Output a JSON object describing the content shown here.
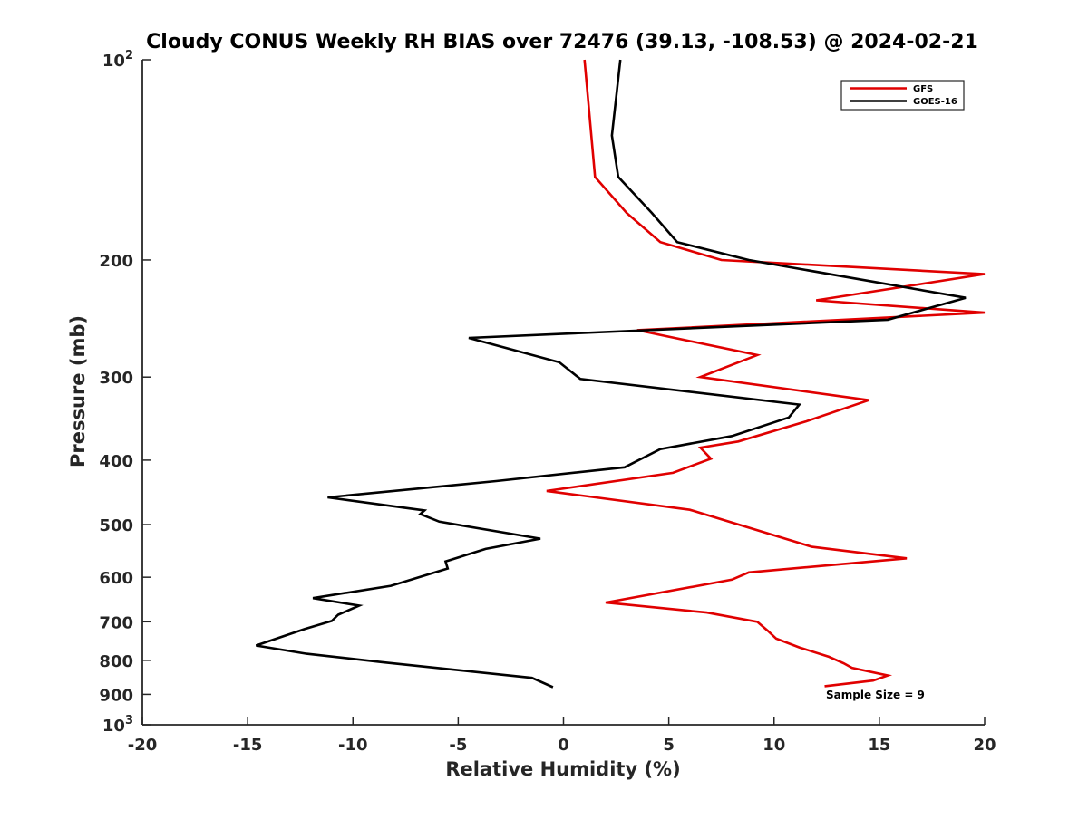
{
  "chart_data": {
    "type": "line",
    "title": "Cloudy CONUS Weekly RH BIAS over 72476 (39.13, -108.53) @ 2024-02-21",
    "xlabel": "Relative Humidity (%)",
    "ylabel": "Pressure (mb)",
    "xlim": [
      -20,
      20
    ],
    "ylim": [
      1000,
      100
    ],
    "y_scale": "log",
    "x_ticks": [
      -20,
      -15,
      -10,
      -5,
      0,
      5,
      10,
      15,
      20
    ],
    "x_tick_labels": [
      "-20",
      "-15",
      "-10",
      "-5",
      "0",
      "5",
      "10",
      "15",
      "20"
    ],
    "y_ticks": [
      {
        "value": 100,
        "label": "10",
        "sup": "2"
      },
      {
        "value": 200,
        "label": "200"
      },
      {
        "value": 300,
        "label": "300"
      },
      {
        "value": 400,
        "label": "400"
      },
      {
        "value": 500,
        "label": "500"
      },
      {
        "value": 600,
        "label": "600"
      },
      {
        "value": 700,
        "label": "700"
      },
      {
        "value": 800,
        "label": "800"
      },
      {
        "value": 900,
        "label": "900"
      },
      {
        "value": 1000,
        "label": "10",
        "sup": "3"
      }
    ],
    "grid": false,
    "legend_position": "top-right",
    "annotation": "Sample Size = 9",
    "series": [
      {
        "name": "GFS",
        "color": "#e00000",
        "points": [
          [
            1.0,
            100
          ],
          [
            1.5,
            150
          ],
          [
            3.0,
            170
          ],
          [
            4.6,
            188
          ],
          [
            7.5,
            200
          ],
          [
            20.0,
            210
          ],
          [
            12.0,
            230
          ],
          [
            20.0,
            240
          ],
          [
            3.5,
            255
          ],
          [
            9.2,
            278
          ],
          [
            6.5,
            300
          ],
          [
            14.5,
            325
          ],
          [
            11.5,
            350
          ],
          [
            8.3,
            375
          ],
          [
            6.5,
            383
          ],
          [
            7.0,
            398
          ],
          [
            5.2,
            418
          ],
          [
            -0.8,
            445
          ],
          [
            6.0,
            475
          ],
          [
            11.8,
            540
          ],
          [
            16.3,
            562
          ],
          [
            8.8,
            590
          ],
          [
            8.0,
            605
          ],
          [
            2.0,
            655
          ],
          [
            6.8,
            678
          ],
          [
            9.2,
            700
          ],
          [
            9.7,
            722
          ],
          [
            10.1,
            742
          ],
          [
            11.2,
            765
          ],
          [
            12.6,
            790
          ],
          [
            13.3,
            808
          ],
          [
            13.7,
            821
          ],
          [
            15.4,
            843
          ],
          [
            14.7,
            858
          ],
          [
            12.4,
            875
          ]
        ]
      },
      {
        "name": "GOES-16",
        "color": "#000000",
        "points": [
          [
            2.7,
            100
          ],
          [
            2.3,
            130
          ],
          [
            2.6,
            150
          ],
          [
            4.2,
            170
          ],
          [
            5.4,
            188
          ],
          [
            8.8,
            200
          ],
          [
            19.1,
            228
          ],
          [
            15.4,
            246
          ],
          [
            -4.5,
            262
          ],
          [
            -0.2,
            285
          ],
          [
            0.8,
            302
          ],
          [
            11.2,
            330
          ],
          [
            10.7,
            345
          ],
          [
            8.0,
            368
          ],
          [
            4.6,
            385
          ],
          [
            2.9,
            410
          ],
          [
            -3.2,
            430
          ],
          [
            -11.2,
            455
          ],
          [
            -6.6,
            476
          ],
          [
            -6.8,
            482
          ],
          [
            -5.9,
            495
          ],
          [
            -1.1,
            525
          ],
          [
            -3.7,
            544
          ],
          [
            -5.6,
            568
          ],
          [
            -5.5,
            582
          ],
          [
            -8.2,
            618
          ],
          [
            -11.9,
            645
          ],
          [
            -9.7,
            662
          ],
          [
            -10.7,
            683
          ],
          [
            -11.0,
            698
          ],
          [
            -12.3,
            718
          ],
          [
            -14.6,
            760
          ],
          [
            -12.2,
            782
          ],
          [
            -8.6,
            805
          ],
          [
            -1.5,
            850
          ],
          [
            -0.5,
            878
          ]
        ]
      }
    ]
  }
}
